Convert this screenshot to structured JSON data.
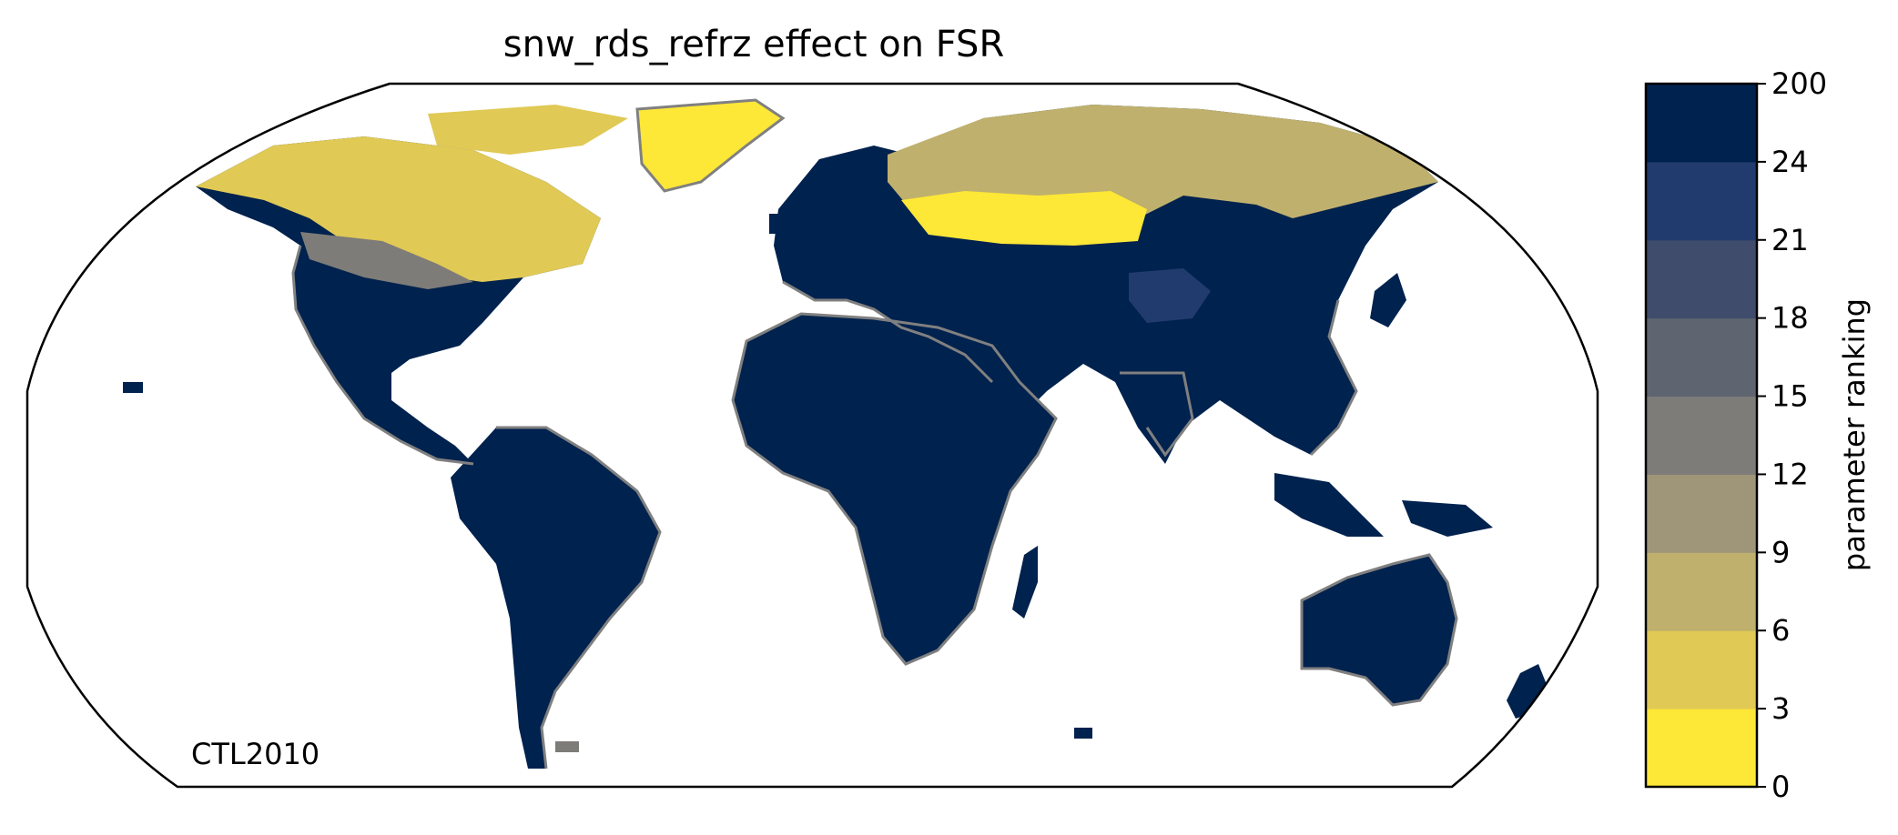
{
  "title": "snw_rds_refrz effect on FSR",
  "map_label": "CTL2010",
  "colorbar": {
    "label": "parameter ranking",
    "ticks": [
      "0",
      "3",
      "6",
      "9",
      "12",
      "15",
      "18",
      "21",
      "24",
      "200"
    ],
    "colors": [
      "#FDE737",
      "#E0C955",
      "#BFB06D",
      "#9F9578",
      "#7D7C78",
      "#5E6470",
      "#3F4C6B",
      "#213B6E",
      "#00224E"
    ]
  },
  "map": {
    "projection": "robinson",
    "land_color": "#00224E",
    "coastline_color": "#808080",
    "frame_color": "#000000"
  }
}
